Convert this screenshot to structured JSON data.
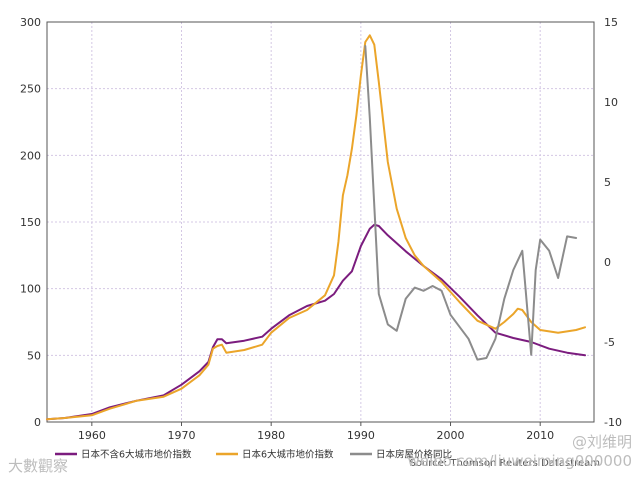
{
  "chart_data": {
    "type": "line",
    "title": "",
    "xlabel": "",
    "ylabel_left": "",
    "ylabel_right": "",
    "xlim": [
      1955,
      2016
    ],
    "ylim_left": [
      0,
      300
    ],
    "ylim_right": [
      -10,
      15
    ],
    "x_ticks": [
      1960,
      1970,
      1980,
      1990,
      2000,
      2010
    ],
    "y_left_ticks": [
      0,
      50,
      100,
      150,
      200,
      250,
      300
    ],
    "y_right_ticks": [
      -10,
      -5,
      0,
      5,
      10,
      15
    ],
    "grid": true,
    "legend_position": "bottom",
    "source": "Source: Thomson Reuters Datastream",
    "colors": {
      "purple": "#7b1c7e",
      "orange": "#eba52a",
      "gray": "#8c8c8c"
    },
    "series": [
      {
        "name": "日本不含6大城市地价指数",
        "axis": "left",
        "color": "#7b1c7e",
        "x": [
          1955,
          1957,
          1960,
          1962,
          1965,
          1968,
          1970,
          1972,
          1973,
          1973.5,
          1974,
          1974.5,
          1975,
          1977,
          1979,
          1980,
          1982,
          1984,
          1986,
          1987,
          1988,
          1989,
          1990,
          1991,
          1991.5,
          1992,
          1993,
          1995,
          1997,
          1999,
          2001,
          2003,
          2005,
          2007,
          2009,
          2011,
          2013,
          2015
        ],
        "y": [
          2,
          3,
          6,
          11,
          16,
          20,
          28,
          38,
          45,
          56,
          62,
          62,
          59,
          61,
          64,
          70,
          80,
          87,
          91,
          96,
          106,
          113,
          132,
          145,
          148,
          147,
          140,
          128,
          117,
          107,
          94,
          80,
          67,
          63,
          60,
          55,
          52,
          50
        ]
      },
      {
        "name": "日本6大城市地价指数",
        "axis": "left",
        "color": "#eba52a",
        "x": [
          1955,
          1957,
          1960,
          1962,
          1965,
          1968,
          1970,
          1972,
          1973,
          1973.5,
          1974,
          1974.5,
          1975,
          1977,
          1979,
          1980,
          1982,
          1984,
          1986,
          1987,
          1987.5,
          1988,
          1988.5,
          1989,
          1989.5,
          1990,
          1990.5,
          1991,
          1991.5,
          1992,
          1993,
          1994,
          1995,
          1996,
          1997,
          1999,
          2001,
          2003,
          2005,
          2006,
          2007,
          2007.5,
          2008,
          2009,
          2010,
          2012,
          2014,
          2015
        ],
        "y": [
          2,
          3,
          5,
          10,
          16,
          19,
          25,
          35,
          43,
          55,
          57,
          58,
          52,
          54,
          58,
          67,
          78,
          84,
          95,
          110,
          135,
          170,
          185,
          205,
          230,
          260,
          285,
          290,
          283,
          255,
          195,
          160,
          138,
          125,
          117,
          105,
          90,
          76,
          70,
          75,
          81,
          85,
          84,
          75,
          69,
          67,
          69,
          71
        ]
      },
      {
        "name": "日本房屋价格同比",
        "axis": "right",
        "color": "#8c8c8c",
        "x": [
          1990.5,
          1991,
          1992,
          1993,
          1994,
          1995,
          1996,
          1997,
          1998,
          1999,
          2000,
          2002,
          2003,
          2004,
          2005,
          2006,
          2007,
          2008,
          2009,
          2009.5,
          2010,
          2011,
          2012,
          2013,
          2014
        ],
        "y": [
          13.5,
          9,
          -2,
          -3.9,
          -4.3,
          -2.3,
          -1.6,
          -1.8,
          -1.5,
          -1.8,
          -3.3,
          -4.8,
          -6.1,
          -6.0,
          -4.8,
          -2.3,
          -0.5,
          0.7,
          -5.8,
          -0.5,
          1.4,
          0.7,
          -1,
          1.6,
          1.5
        ]
      }
    ]
  },
  "watermarks": {
    "left": "大數觀察",
    "right_top": "@刘维明",
    "right_bottom": "weibo.com/liuweiming000000"
  }
}
